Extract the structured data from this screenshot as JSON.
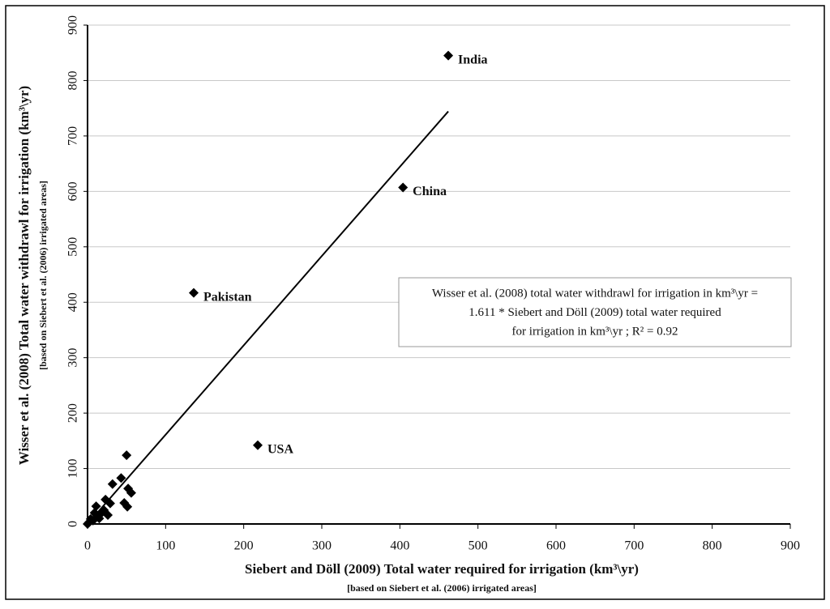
{
  "chart_data": {
    "type": "scatter",
    "x_label": "Siebert and Döll (2009) Total water required for irrigation (km³\\yr)",
    "x_sublabel": "[based on Siebert et al. (2006) irrigated areas]",
    "y_label": "Wisser et al. (2008) Total water withdrawl for irrigation (km³\\yr)",
    "y_sublabel": "[based on Siebert et al. (2006) irrigated areas]",
    "x": [
      462,
      404,
      136,
      218,
      50,
      43,
      32,
      52,
      56,
      47,
      51,
      23,
      29,
      21,
      26,
      11,
      9,
      15,
      4,
      2,
      7,
      18,
      0,
      13
    ],
    "values": [
      845,
      607,
      417,
      142,
      124,
      83,
      72,
      64,
      56,
      38,
      31,
      44,
      37,
      25,
      16,
      32,
      20,
      10,
      9,
      3,
      6,
      20,
      0,
      14
    ],
    "labels": [
      "India",
      "China",
      "Pakistan",
      "USA",
      null,
      null,
      null,
      null,
      null,
      null,
      null,
      null,
      null,
      null,
      null,
      null,
      null,
      null,
      null,
      null,
      null,
      null,
      null,
      null
    ],
    "color": "#000000",
    "trendline": {
      "slope": 1.611
    },
    "annotation": [
      "Wisser et al. (2008) total water withdrawl for irrigation in km³\\yr =",
      "1.611 * Siebert and Döll (2009) total water required",
      "for irrigation in km³\\yr ; R² = 0.92"
    ],
    "xlim": [
      0,
      900
    ],
    "xticks": [
      0,
      100,
      200,
      300,
      400,
      500,
      600,
      700,
      800,
      900
    ],
    "ylim": [
      0,
      900
    ],
    "yticks": [
      0,
      100,
      200,
      300,
      400,
      500,
      600,
      700,
      800,
      900
    ],
    "grid": true
  }
}
